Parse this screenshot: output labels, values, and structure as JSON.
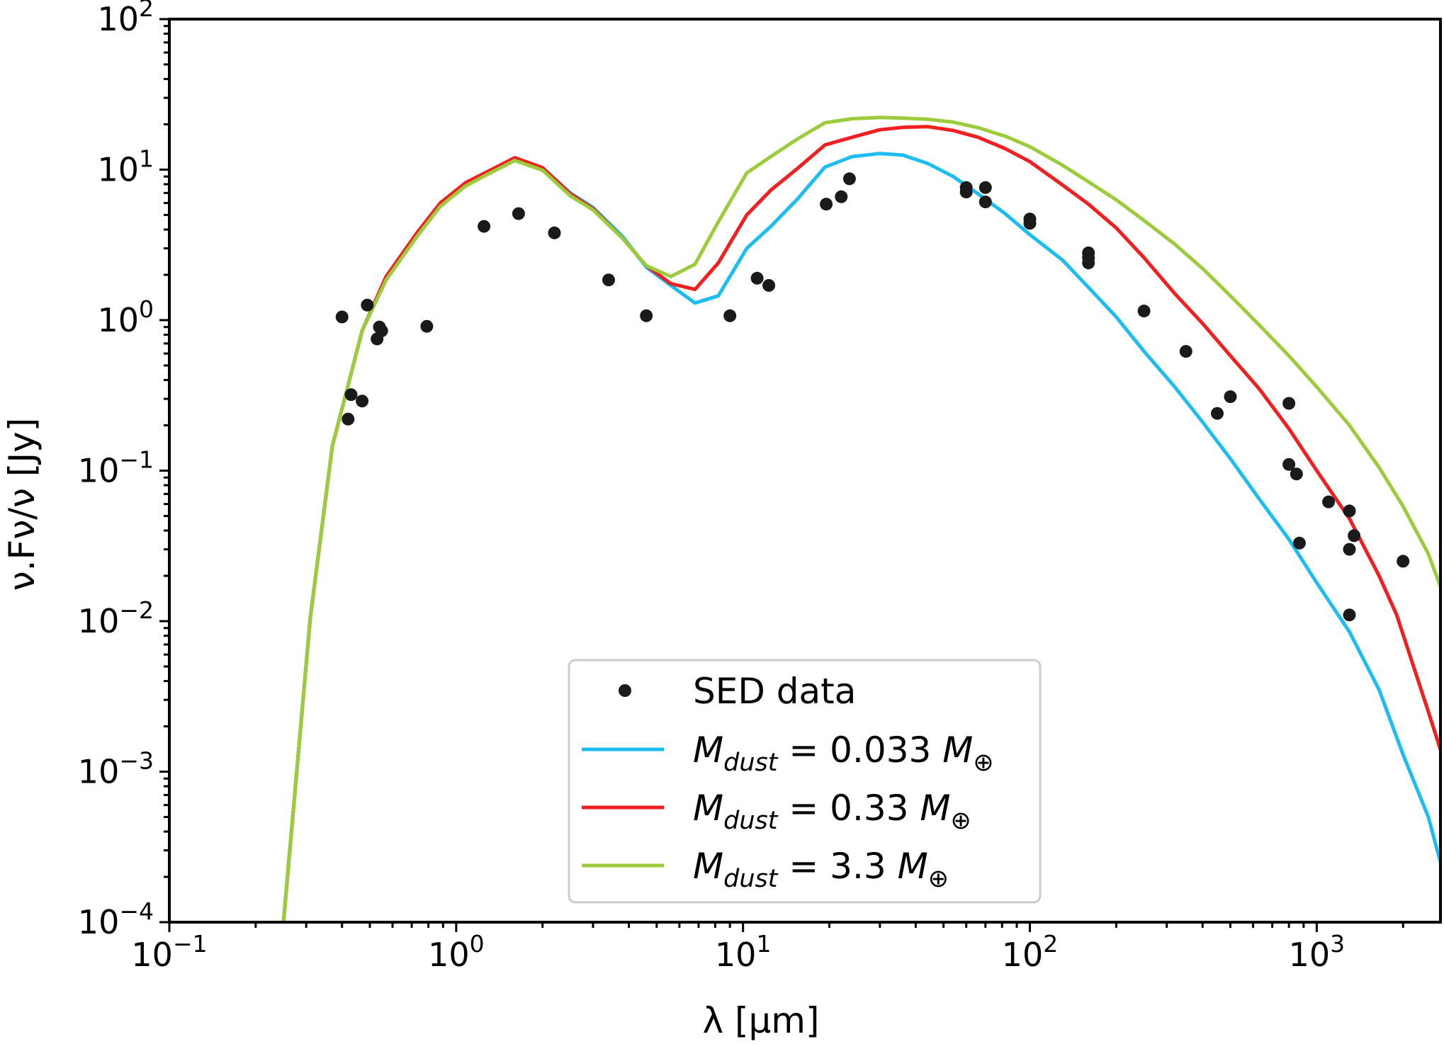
{
  "chart_data": {
    "type": "line",
    "title": "",
    "xlabel": "λ [μm]",
    "ylabel": "ν.Fν/ν [Jy]",
    "xscale": "log",
    "yscale": "log",
    "xlim": [
      0.1,
      2700
    ],
    "ylim": [
      0.0001,
      100
    ],
    "grid": false,
    "legend_position": "lower-center",
    "x_ticks": [
      {
        "value": 0.1,
        "base": "10",
        "exp": "−1"
      },
      {
        "value": 1,
        "base": "10",
        "exp": "0"
      },
      {
        "value": 10,
        "base": "10",
        "exp": "1"
      },
      {
        "value": 100,
        "base": "10",
        "exp": "2"
      },
      {
        "value": 1000,
        "base": "10",
        "exp": "3"
      }
    ],
    "y_ticks": [
      {
        "value": 0.0001,
        "base": "10",
        "exp": "−4"
      },
      {
        "value": 0.001,
        "base": "10",
        "exp": "−3"
      },
      {
        "value": 0.01,
        "base": "10",
        "exp": "−2"
      },
      {
        "value": 0.1,
        "base": "10",
        "exp": "−1"
      },
      {
        "value": 1,
        "base": "10",
        "exp": "0"
      },
      {
        "value": 10,
        "base": "10",
        "exp": "1"
      },
      {
        "value": 100,
        "base": "10",
        "exp": "2"
      }
    ],
    "scatter": {
      "name": "SED data",
      "color": "#1a1a1a",
      "points": [
        [
          0.4,
          1.05
        ],
        [
          0.42,
          0.22
        ],
        [
          0.43,
          0.32
        ],
        [
          0.47,
          0.29
        ],
        [
          0.49,
          1.26
        ],
        [
          0.53,
          0.75
        ],
        [
          0.54,
          0.9
        ],
        [
          0.55,
          0.85
        ],
        [
          0.79,
          0.91
        ],
        [
          1.25,
          4.2
        ],
        [
          1.65,
          5.1
        ],
        [
          2.2,
          3.8
        ],
        [
          3.4,
          1.85
        ],
        [
          4.6,
          1.07
        ],
        [
          9.0,
          1.07
        ],
        [
          11.2,
          1.9
        ],
        [
          12.3,
          1.7
        ],
        [
          19.5,
          5.9
        ],
        [
          22.0,
          6.6
        ],
        [
          23.5,
          8.7
        ],
        [
          60,
          7.6
        ],
        [
          60,
          7.1
        ],
        [
          70,
          7.6
        ],
        [
          70,
          6.1
        ],
        [
          100,
          4.7
        ],
        [
          100,
          4.4
        ],
        [
          160,
          2.8
        ],
        [
          160,
          2.6
        ],
        [
          160,
          2.4
        ],
        [
          250,
          1.15
        ],
        [
          350,
          0.62
        ],
        [
          450,
          0.24
        ],
        [
          500,
          0.31
        ],
        [
          800,
          0.28
        ],
        [
          800,
          0.11
        ],
        [
          850,
          0.095
        ],
        [
          870,
          0.033
        ],
        [
          1100,
          0.062
        ],
        [
          1300,
          0.054
        ],
        [
          1300,
          0.03
        ],
        [
          1350,
          0.037
        ],
        [
          1300,
          0.011
        ],
        [
          2000,
          0.025
        ]
      ]
    },
    "series": [
      {
        "name": "M_dust = 0.033 M⊕",
        "label_parts": {
          "sym": "M",
          "sub": "dust",
          "value": " = 0.033 ",
          "unit": "M",
          "unit_sub": "⊕"
        },
        "color": "#1ebdf0",
        "points": [
          [
            0.25,
            0.0001
          ],
          [
            0.31,
            0.0105
          ],
          [
            0.37,
            0.145
          ],
          [
            0.47,
            0.85
          ],
          [
            0.57,
            1.95
          ],
          [
            0.73,
            3.8
          ],
          [
            0.88,
            6.0
          ],
          [
            1.08,
            8.2
          ],
          [
            1.3,
            9.8
          ],
          [
            1.6,
            12.0
          ],
          [
            2.0,
            10.3
          ],
          [
            2.5,
            7.0
          ],
          [
            3.0,
            5.6
          ],
          [
            3.8,
            3.6
          ],
          [
            4.6,
            2.25
          ],
          [
            5.6,
            1.7
          ],
          [
            6.8,
            1.3
          ],
          [
            8.2,
            1.45
          ],
          [
            10.3,
            3.0
          ],
          [
            12.5,
            4.2
          ],
          [
            15.5,
            6.4
          ],
          [
            19.3,
            10.4
          ],
          [
            24,
            12.2
          ],
          [
            30,
            12.8
          ],
          [
            36,
            12.5
          ],
          [
            44,
            11.0
          ],
          [
            54,
            9.0
          ],
          [
            66,
            6.9
          ],
          [
            82,
            5.1
          ],
          [
            100,
            3.7
          ],
          [
            130,
            2.5
          ],
          [
            160,
            1.65
          ],
          [
            200,
            1.05
          ],
          [
            250,
            0.62
          ],
          [
            320,
            0.36
          ],
          [
            400,
            0.21
          ],
          [
            500,
            0.12
          ],
          [
            630,
            0.065
          ],
          [
            800,
            0.035
          ],
          [
            1000,
            0.018
          ],
          [
            1300,
            0.0085
          ],
          [
            1650,
            0.0035
          ],
          [
            2000,
            0.0013
          ],
          [
            2450,
            0.0005
          ],
          [
            2700,
            0.00025
          ]
        ]
      },
      {
        "name": "M_dust = 0.33 M⊕",
        "label_parts": {
          "sym": "M",
          "sub": "dust",
          "value": " = 0.33 ",
          "unit": "M",
          "unit_sub": "⊕"
        },
        "color": "#f02020",
        "points": [
          [
            0.25,
            0.0001
          ],
          [
            0.31,
            0.0105
          ],
          [
            0.37,
            0.145
          ],
          [
            0.47,
            0.85
          ],
          [
            0.57,
            1.95
          ],
          [
            0.73,
            3.8
          ],
          [
            0.88,
            6.0
          ],
          [
            1.08,
            8.2
          ],
          [
            1.3,
            9.8
          ],
          [
            1.6,
            12.0
          ],
          [
            2.0,
            10.3
          ],
          [
            2.5,
            6.9
          ],
          [
            3.0,
            5.5
          ],
          [
            3.8,
            3.5
          ],
          [
            4.6,
            2.3
          ],
          [
            5.6,
            1.75
          ],
          [
            6.8,
            1.6
          ],
          [
            8.2,
            2.4
          ],
          [
            10.3,
            5.0
          ],
          [
            12.5,
            7.3
          ],
          [
            15.5,
            10.2
          ],
          [
            19.3,
            14.6
          ],
          [
            24,
            16.4
          ],
          [
            30,
            18.4
          ],
          [
            36,
            19.1
          ],
          [
            44,
            19.3
          ],
          [
            54,
            18.2
          ],
          [
            66,
            16.4
          ],
          [
            82,
            13.8
          ],
          [
            100,
            11.3
          ],
          [
            130,
            7.9
          ],
          [
            160,
            5.9
          ],
          [
            200,
            4.1
          ],
          [
            250,
            2.6
          ],
          [
            320,
            1.5
          ],
          [
            400,
            0.95
          ],
          [
            500,
            0.58
          ],
          [
            630,
            0.35
          ],
          [
            800,
            0.19
          ],
          [
            1000,
            0.1
          ],
          [
            1300,
            0.048
          ],
          [
            1650,
            0.02
          ],
          [
            1900,
            0.011
          ],
          [
            2450,
            0.0025
          ],
          [
            2700,
            0.0014
          ]
        ]
      },
      {
        "name": "M_dust = 3.3 M⊕",
        "label_parts": {
          "sym": "M",
          "sub": "dust",
          "value": " = 3.3 ",
          "unit": "M",
          "unit_sub": "⊕"
        },
        "color": "#9ccb3b",
        "points": [
          [
            0.25,
            0.0001
          ],
          [
            0.31,
            0.0105
          ],
          [
            0.37,
            0.145
          ],
          [
            0.47,
            0.85
          ],
          [
            0.57,
            1.85
          ],
          [
            0.73,
            3.6
          ],
          [
            0.88,
            5.7
          ],
          [
            1.08,
            7.8
          ],
          [
            1.3,
            9.4
          ],
          [
            1.6,
            11.5
          ],
          [
            2.0,
            9.9
          ],
          [
            2.5,
            6.7
          ],
          [
            3.0,
            5.4
          ],
          [
            3.8,
            3.5
          ],
          [
            4.6,
            2.3
          ],
          [
            5.6,
            1.95
          ],
          [
            6.8,
            2.35
          ],
          [
            8.2,
            4.5
          ],
          [
            10.3,
            9.5
          ],
          [
            12.5,
            12.2
          ],
          [
            15.5,
            16.0
          ],
          [
            19.3,
            20.5
          ],
          [
            24,
            21.8
          ],
          [
            30,
            22.2
          ],
          [
            36,
            22.0
          ],
          [
            44,
            21.6
          ],
          [
            54,
            20.7
          ],
          [
            66,
            19.0
          ],
          [
            82,
            16.7
          ],
          [
            100,
            14.2
          ],
          [
            130,
            10.7
          ],
          [
            160,
            8.3
          ],
          [
            200,
            6.3
          ],
          [
            250,
            4.6
          ],
          [
            320,
            3.2
          ],
          [
            400,
            2.2
          ],
          [
            500,
            1.45
          ],
          [
            630,
            0.93
          ],
          [
            800,
            0.58
          ],
          [
            1000,
            0.36
          ],
          [
            1300,
            0.2
          ],
          [
            1650,
            0.105
          ],
          [
            2000,
            0.058
          ],
          [
            2450,
            0.028
          ],
          [
            2700,
            0.017
          ]
        ]
      }
    ]
  }
}
